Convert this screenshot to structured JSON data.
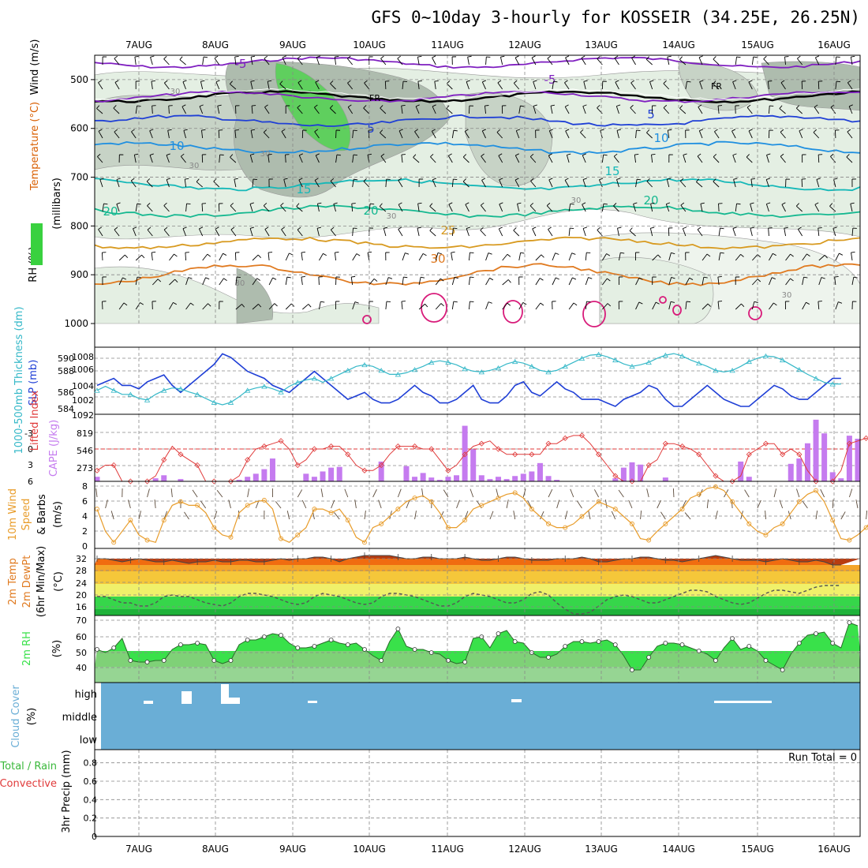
{
  "page": {
    "title": "GFS 0~10day 3-hourly for KOSSEIR (34.25E, 26.25N)"
  },
  "dates": [
    "7AUG",
    "8AUG",
    "9AUG",
    "10AUG",
    "11AUG",
    "12AUG",
    "13AUG",
    "14AUG",
    "15AUG",
    "16AUG"
  ],
  "colors": {
    "rh_fill": "#39d13f",
    "wind_barb": "#000000",
    "slp_line": "#1f3fd6",
    "thickness_line": "#35b8c8",
    "lifted_index": "#e03a3a",
    "cape_bar": "#c57bef",
    "wind_speed": "#e89c2a",
    "rh2m_fill": "#39e14a",
    "cloud_bg": "#6aaed6",
    "precip_note": "#000000"
  },
  "chart_data": [
    {
      "id": "upper_air",
      "type": "heatmap",
      "ylabel_parts": [
        "Wind (m/s)",
        "Temperature (°C)",
        "RH (%)",
        "(millibars)"
      ],
      "y_ticks": [
        500,
        600,
        700,
        800,
        900,
        1000
      ],
      "ylim": [
        450,
        1000
      ],
      "x_labels": [
        "7AUG",
        "8AUG",
        "9AUG",
        "10AUG",
        "11AUG",
        "12AUG",
        "13AUG",
        "14AUG",
        "15AUG",
        "16AUG"
      ],
      "rh_contour_labels": [
        "30",
        "30",
        "30",
        "30",
        "30",
        "30",
        "30"
      ],
      "isotherms": [
        {
          "label": "-5",
          "level_mb": 465,
          "color": "#7f1fc0"
        },
        {
          "label": "FR",
          "level_mb": 535,
          "color": "#000000"
        },
        {
          "label": "-5",
          "level_mb": 535,
          "color": "#7f1fc0"
        },
        {
          "label": "5",
          "level_mb": 585,
          "color": "#1f3fd6"
        },
        {
          "label": "10",
          "level_mb": 640,
          "color": "#1f8fe0"
        },
        {
          "label": "15",
          "level_mb": 715,
          "color": "#15b8b8"
        },
        {
          "label": "20",
          "level_mb": 770,
          "color": "#15b890"
        },
        {
          "label": "25",
          "level_mb": 835,
          "color": "#d89a20"
        },
        {
          "label": "30",
          "level_mb": 900,
          "color": "#e07a20"
        }
      ]
    },
    {
      "id": "slp_thickness",
      "type": "line",
      "ylabel_left": "1000-500mb Thickness (dm)",
      "ylabel_right": "SLP (mb)",
      "left_ticks": [
        "590",
        "588",
        "586",
        "584"
      ],
      "right_ticks": [
        "1008",
        "1006",
        "1004",
        "1002",
        "1092"
      ],
      "series": [
        {
          "name": "SLP",
          "values": [
            1004,
            1004.5,
            1005,
            1004,
            1004,
            1003.5,
            1004.5,
            1005,
            1005.5,
            1004,
            1003,
            1004,
            1005,
            1006,
            1007,
            1008.5,
            1008,
            1007,
            1006,
            1005.5,
            1005,
            1004,
            1003.5,
            1003,
            1004,
            1005,
            1006,
            1005,
            1004,
            1003,
            1002,
            1002.5,
            1003,
            1002,
            1001.5,
            1001.5,
            1002,
            1003,
            1004,
            1003,
            1002.5,
            1001.5,
            1001.5,
            1002,
            1003,
            1004,
            1002,
            1001.5,
            1001.5,
            1002.5,
            1004,
            1004.5,
            1003,
            1002.5,
            1003.5,
            1004.5,
            1003.5,
            1003,
            1002,
            1002,
            1002,
            1001.5,
            1001,
            1002,
            1002.5,
            1003,
            1004,
            1003.5,
            1002,
            1001,
            1001,
            1002,
            1003,
            1004,
            1003,
            1002,
            1001.5,
            1001,
            1001,
            1002,
            1003,
            1004,
            1003.5,
            1002.5,
            1002,
            1002,
            1003,
            1004,
            1005,
            1005
          ]
        },
        {
          "name": "Thickness",
          "values": [
            586,
            586.5,
            586,
            585.5,
            585.5,
            585,
            584.8,
            585.5,
            586,
            586.3,
            586.2,
            585.8,
            585.5,
            585,
            584.5,
            584.2,
            584.5,
            585.2,
            586,
            586.3,
            586.5,
            586.2,
            585.8,
            586.5,
            587,
            587.3,
            587.5,
            587,
            587.5,
            588,
            588.5,
            589,
            589.2,
            589,
            588.5,
            588,
            588,
            588.2,
            588.6,
            589,
            589.5,
            589.7,
            589.5,
            589.2,
            588.7,
            588.4,
            588.3,
            588.5,
            588.8,
            589.3,
            589.6,
            589.4,
            589,
            588.5,
            588.3,
            588.5,
            589,
            589.5,
            590,
            590.4,
            590.5,
            590.2,
            589.8,
            589.3,
            589,
            589.2,
            589.5,
            590,
            590.4,
            590.6,
            590.3,
            589.8,
            589.4,
            589,
            588.5,
            588.3,
            588.5,
            589,
            589.6,
            590,
            590.3,
            590.2,
            589.8,
            589.2,
            588.6,
            588,
            587.5,
            587,
            586.8,
            586.8
          ]
        }
      ]
    },
    {
      "id": "cape_li",
      "type": "bar",
      "ylabel_left": "Lifted Index",
      "ylabel_right": "CAPE (J/kg)",
      "left_ticks": [
        "-3",
        "0",
        "3",
        "6"
      ],
      "right_ticks": [
        "819",
        "546",
        "273"
      ],
      "cape_values": [
        60,
        0,
        0,
        0,
        0,
        0,
        0,
        40,
        80,
        0,
        30,
        0,
        0,
        0,
        0,
        0,
        0,
        20,
        60,
        100,
        160,
        300,
        0,
        0,
        0,
        100,
        60,
        130,
        180,
        190,
        0,
        0,
        0,
        0,
        260,
        0,
        0,
        200,
        60,
        110,
        50,
        20,
        60,
        80,
        730,
        420,
        80,
        30,
        60,
        30,
        70,
        100,
        130,
        240,
        70,
        20,
        0,
        0,
        0,
        0,
        0,
        0,
        40,
        180,
        250,
        220,
        0,
        0,
        50,
        0,
        0,
        0,
        0,
        0,
        0,
        0,
        0,
        260,
        60,
        0,
        0,
        0,
        0,
        230,
        300,
        500,
        810,
        630,
        120,
        40,
        600,
        560
      ],
      "li_values": [
        4,
        3,
        3,
        6,
        6,
        6,
        6,
        5,
        2,
        -0.5,
        1,
        2,
        3,
        6,
        6,
        6,
        6,
        5,
        2,
        0,
        -0.5,
        -1,
        -1.5,
        0,
        3,
        2,
        0,
        0,
        -0.5,
        -0.5,
        1,
        3,
        4,
        4,
        3,
        1,
        -0.5,
        -0.5,
        -0.5,
        0,
        0,
        2,
        4,
        3,
        1,
        -0.5,
        -1,
        -1.5,
        0,
        1,
        1,
        1,
        1,
        1,
        -1,
        -1,
        -2,
        -2.5,
        -2.5,
        -1,
        1,
        3,
        5,
        6,
        6,
        6,
        3,
        2,
        -1,
        -1,
        -0.5,
        0,
        1,
        3,
        5,
        6,
        6,
        5,
        1,
        0,
        -1,
        -1,
        1,
        0,
        1,
        4,
        6,
        6,
        6,
        4,
        -1,
        -1.5,
        -2,
        -1.5,
        0,
        -1,
        -1.5,
        -1.5
      ]
    },
    {
      "id": "wind10m",
      "type": "line",
      "ylabel": "10m Wind Speed (m/s) & Barbs",
      "y_ticks": [
        "8",
        "6",
        "4",
        "2",
        "0"
      ],
      "ylim": [
        0,
        8
      ],
      "series": [
        {
          "name": "Wind speed",
          "values": [
            5,
            2,
            0.5,
            2,
            3.5,
            1.5,
            0.8,
            0.5,
            3.5,
            5.5,
            6,
            5.5,
            5.5,
            4.5,
            2.5,
            1.5,
            1.2,
            4.5,
            5.5,
            6,
            6.2,
            5,
            1,
            0.5,
            1.5,
            2.5,
            5,
            5,
            4.5,
            5,
            3.5,
            1.2,
            0.5,
            2.5,
            3,
            4,
            5,
            6,
            6.5,
            6.8,
            6,
            4.5,
            2.5,
            2.5,
            3.5,
            5,
            5.5,
            6,
            6.5,
            7,
            7.2,
            6.5,
            5,
            4,
            3,
            2.5,
            2.5,
            3,
            4,
            5,
            6,
            5.5,
            5,
            4,
            3,
            1,
            0.8,
            2,
            3,
            4,
            5,
            6.5,
            7,
            7.8,
            8,
            7.5,
            6,
            4.5,
            3,
            2,
            1.5,
            2.5,
            3,
            4.5,
            6,
            7,
            7.5,
            6,
            3.5,
            1,
            0.8,
            1.5,
            2.5,
            4,
            4.5
          ]
        }
      ]
    },
    {
      "id": "temp2m",
      "type": "area",
      "ylabel": "2m Temp 2m DewPt (6hr Min/Max) (°C)",
      "y_ticks": [
        "32",
        "28",
        "24",
        "20",
        "16"
      ],
      "ylim": [
        14,
        34
      ],
      "series": [
        {
          "name": "Temperature",
          "values": [
            32,
            32,
            31.5,
            31,
            31.5,
            32,
            31.5,
            31,
            31,
            31.5,
            31,
            30.5,
            31,
            31,
            31.5,
            31,
            31,
            31.5,
            31.5,
            31,
            31,
            31.5,
            32,
            31.5,
            32,
            32,
            32.5,
            32.5,
            32,
            31,
            32,
            32.5,
            33,
            33,
            33,
            33,
            32.5,
            32,
            32,
            32.5,
            32.5,
            32,
            32,
            32,
            32.5,
            32,
            31.5,
            31.5,
            32,
            32.5,
            32.5,
            32,
            31.5,
            31.5,
            31.5,
            32,
            32,
            32,
            32.5,
            32,
            31,
            31,
            31.5,
            32,
            32,
            32.5,
            32.5,
            32,
            31.5,
            31.5,
            31,
            31.5,
            32,
            32.5,
            33,
            32.5,
            32,
            31.5,
            31.5,
            31.5,
            31,
            31.5,
            32,
            31.5,
            31,
            31,
            31.5,
            31,
            30,
            30
          ]
        },
        {
          "name": "Dewpoint",
          "values": [
            20,
            20,
            19,
            18,
            18,
            17,
            17,
            18,
            20,
            20.5,
            20,
            20,
            19,
            18,
            17.5,
            17,
            18,
            20,
            21,
            21,
            20.5,
            20,
            19,
            18,
            17.5,
            18,
            20,
            21,
            20.5,
            20,
            19,
            18,
            17.5,
            18,
            20,
            21,
            21,
            20.5,
            20,
            19,
            18,
            17,
            17,
            18,
            20,
            21,
            20.5,
            20,
            19,
            18,
            18,
            19,
            21,
            21.5,
            20.5,
            18,
            16,
            14.5,
            14.5,
            15,
            17,
            19,
            20,
            20.5,
            20,
            19,
            18,
            18,
            19,
            20,
            21,
            22,
            22,
            21.5,
            20,
            19,
            18,
            17.5,
            18,
            19.5,
            21,
            22,
            22,
            21.5,
            21,
            22,
            23,
            23.5,
            23.5,
            23.5
          ]
        }
      ]
    },
    {
      "id": "rh2m",
      "type": "area",
      "ylabel": "2m RH (%)",
      "y_ticks": [
        "70",
        "60",
        "50",
        "40"
      ],
      "ylim": [
        30,
        70
      ],
      "series": [
        {
          "name": "RH",
          "values": [
            51,
            49,
            52,
            58,
            44,
            43,
            43,
            44,
            44,
            51,
            54,
            54,
            55,
            54,
            44,
            42,
            44,
            54,
            57,
            57,
            59,
            61,
            60,
            55,
            52,
            52,
            53,
            55,
            57,
            55,
            54,
            55,
            51,
            47,
            44,
            56,
            64,
            53,
            51,
            51,
            49,
            48,
            44,
            42,
            43,
            58,
            59,
            52,
            61,
            63,
            56,
            55,
            49,
            46,
            46,
            48,
            53,
            56,
            56,
            55,
            56,
            57,
            54,
            47,
            38,
            38,
            46,
            53,
            55,
            55,
            54,
            52,
            50,
            48,
            44,
            52,
            58,
            51,
            53,
            50,
            44,
            41,
            38,
            48,
            55,
            60,
            61,
            62,
            55,
            52,
            68,
            66
          ]
        }
      ]
    },
    {
      "id": "cloud",
      "type": "heatmap",
      "ylabel": "Cloud Cover (%)",
      "y_labels": [
        "high",
        "middle",
        "low"
      ]
    },
    {
      "id": "precip",
      "type": "bar",
      "ylabel_parts": [
        "Total / Rain",
        "Convective",
        "3hr Precip (mm)"
      ],
      "y_ticks": [
        "0.8",
        "0.6",
        "0.4",
        "0.2",
        "0"
      ],
      "ylim": [
        0,
        0.9
      ],
      "note": "Run Total = 0"
    }
  ]
}
